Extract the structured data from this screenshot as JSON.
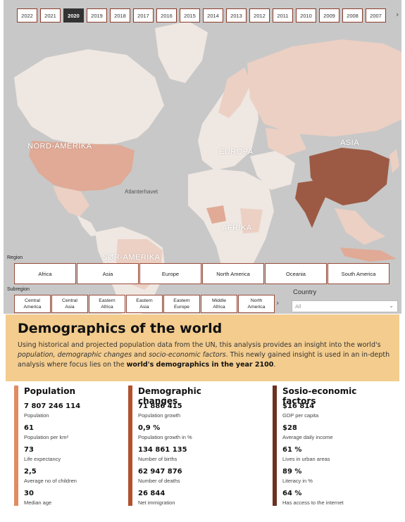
{
  "years": [
    "2022",
    "2021",
    "2020",
    "2019",
    "2018",
    "2017",
    "2016",
    "2015",
    "2014",
    "2013",
    "2012",
    "2011",
    "2010",
    "2009",
    "2008",
    "2007"
  ],
  "selected_year": "2020",
  "map": {
    "labels": {
      "north_america": "NORD-AMERIKA",
      "europe": "EUROPA",
      "asia": "ASIA",
      "africa": "AFRIKA",
      "south_america": "SØR-AMERIKA",
      "atlantic": "Atlanterhavet"
    },
    "colors": {
      "ocean": "#c8c8c8",
      "land": "#efe7e2",
      "light": "#ecd0c4",
      "mid": "#e0aa96",
      "strong": "#9c5a44"
    }
  },
  "region": {
    "label": "Region",
    "items": [
      "Africa",
      "Asia",
      "Europe",
      "North America",
      "Oceania",
      "South America"
    ]
  },
  "subregion": {
    "label": "Subregion",
    "items": [
      [
        "Central",
        "America"
      ],
      [
        "Central",
        "Asia"
      ],
      [
        "Eastern",
        "Africa"
      ],
      [
        "Eastern",
        "Asia"
      ],
      [
        "Eastern",
        "Europe"
      ],
      [
        "Middle",
        "Africa"
      ],
      [
        "North",
        "America"
      ]
    ]
  },
  "country": {
    "label": "Country",
    "value": "All"
  },
  "header": {
    "title": "Demographics of the world",
    "desc_1": "Using historical and projected population data from the UN, this analysis provides an insight into the world's ",
    "desc_em1": "population, demographic changes",
    "desc_2": " and ",
    "desc_em2": "socio-economic factors",
    "desc_3": ". This newly gained insight is used in an in-depth analysis where focus lies on the ",
    "desc_strong": "world's demographics in the year 2100",
    "desc_4": "."
  },
  "kpis": {
    "population": {
      "title": "Population",
      "color": "#e08c63",
      "items": [
        {
          "value": "7 807 246 114",
          "label": "Population"
        },
        {
          "value": "61",
          "label": "Population per km²"
        },
        {
          "value": "73",
          "label": "Life expectancy"
        },
        {
          "value": "2,5",
          "label": "Average no of children"
        },
        {
          "value": "30",
          "label": "Median age"
        }
      ]
    },
    "demographic": {
      "title": "Demographic changes",
      "color": "#b2512e",
      "items": [
        {
          "value": "71 886 415",
          "label": "Population growth"
        },
        {
          "value": "0,9 %",
          "label": "Population growth in %"
        },
        {
          "value": "134 861 135",
          "label": "Number of births"
        },
        {
          "value": "62 947 876",
          "label": "Number of deaths"
        },
        {
          "value": "26 844",
          "label": "Net immigration"
        }
      ]
    },
    "socio": {
      "title": "Sosio-economic factors",
      "color": "#6b3120",
      "items": [
        {
          "value": "$16 814",
          "label": "GDP per capita"
        },
        {
          "value": "$28",
          "label": "Average daily income"
        },
        {
          "value": "61 %",
          "label": "Lives in urban areas"
        },
        {
          "value": "89 %",
          "label": "Literacy in %"
        },
        {
          "value": "64 %",
          "label": "Has access to the internet"
        }
      ]
    }
  }
}
